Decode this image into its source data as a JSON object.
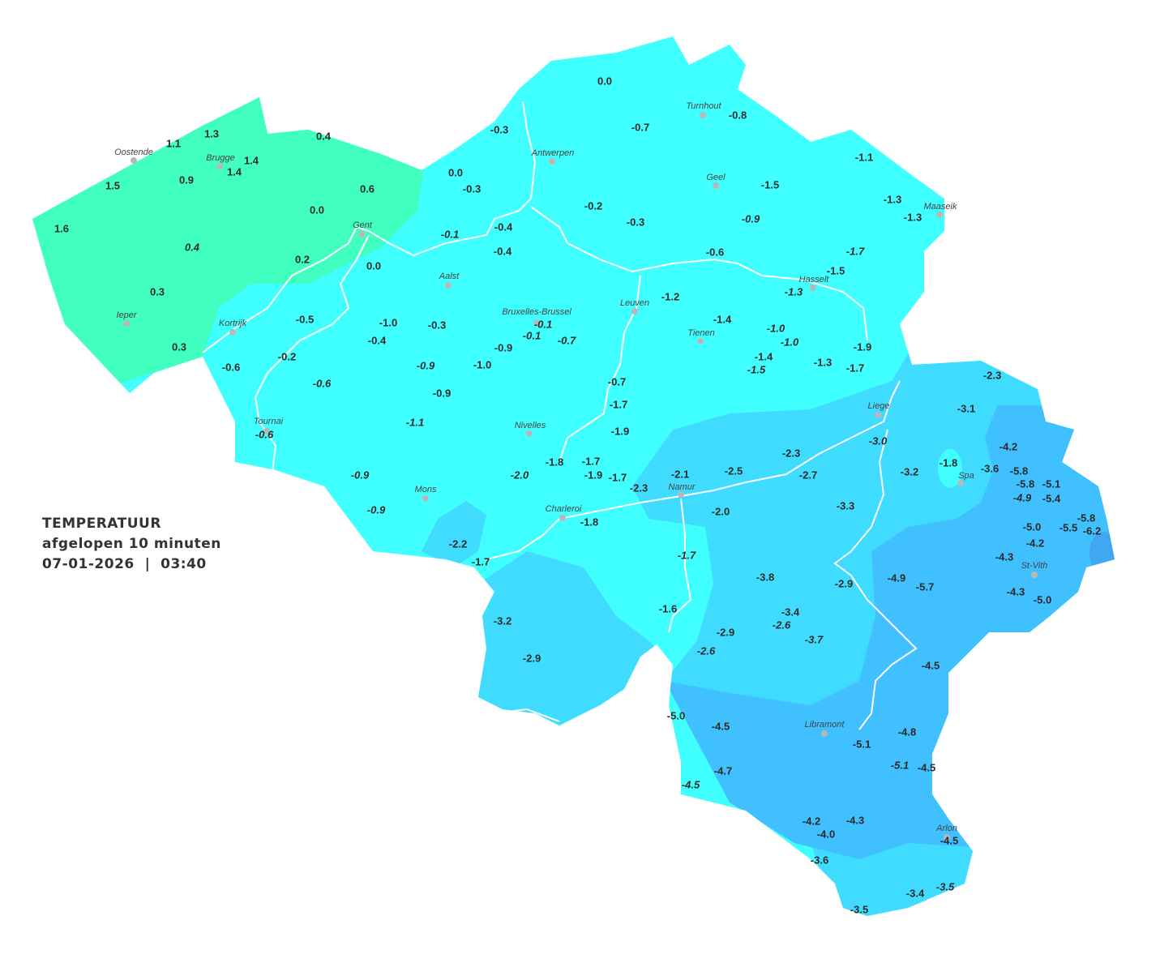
{
  "legend": {
    "title": "TEMPERATUUR",
    "subtitle": "afgelopen 10 minuten",
    "datetime": "07-01-2026  |  03:40"
  },
  "colors": {
    "above_0": "#40FFBF",
    "0_to_-2": "#40FFFF",
    "-2_to_-4": "#40DCFF",
    "-4_to_-6": "#40C0FF",
    "below_-6": "#40A8F0",
    "rivers": "#FFFFFF",
    "city_dot": "#B8B8B8"
  },
  "cities": [
    "Oostende",
    "Brugge",
    "Gent",
    "Ieper",
    "Kortrijk",
    "Antwerpen",
    "Turnhout",
    "Geel",
    "Maaseik",
    "Hasselt",
    "Leuven",
    "Tienen",
    "Aalst",
    "Bruxelles-Brussel",
    "Tournai",
    "Nivelles",
    "Mons",
    "Charleroi",
    "Namur",
    "Liege",
    "Spa",
    "St-Vith",
    "Libramont",
    "Arlon"
  ],
  "stations": [
    {
      "v": "1.3"
    },
    {
      "v": "1.1"
    },
    {
      "v": "1.4"
    },
    {
      "v": "1.4"
    },
    {
      "v": "0.9"
    },
    {
      "v": "1.5"
    },
    {
      "v": "0.4"
    },
    {
      "v": "0.6"
    },
    {
      "v": "0.0"
    },
    {
      "v": "1.6"
    },
    {
      "v": "0.4",
      "i": true
    },
    {
      "v": "0.2"
    },
    {
      "v": "0.0"
    },
    {
      "v": "0.3"
    },
    {
      "v": "0.3"
    },
    {
      "v": "0.0"
    },
    {
      "v": "-0.3"
    },
    {
      "v": "-0.7"
    },
    {
      "v": "-0.8"
    },
    {
      "v": "-1.1"
    },
    {
      "v": "0.0"
    },
    {
      "v": "-0.3"
    },
    {
      "v": "-1.5"
    },
    {
      "v": "-1.3"
    },
    {
      "v": "-1.3"
    },
    {
      "v": "-0.2"
    },
    {
      "v": "-0.3"
    },
    {
      "v": "-0.9",
      "i": true
    },
    {
      "v": "-0.4"
    },
    {
      "v": "-0.1",
      "i": true
    },
    {
      "v": "-0.4"
    },
    {
      "v": "-0.6"
    },
    {
      "v": "-1.7",
      "i": true
    },
    {
      "v": "-1.5"
    },
    {
      "v": "-1.3",
      "i": true
    },
    {
      "v": "-1.2"
    },
    {
      "v": "-0.5"
    },
    {
      "v": "-1.0"
    },
    {
      "v": "-0.3"
    },
    {
      "v": "-0.1",
      "i": true
    },
    {
      "v": "-0.1",
      "i": true
    },
    {
      "v": "-0.7",
      "i": true
    },
    {
      "v": "-1.4"
    },
    {
      "v": "-1.0",
      "i": true
    },
    {
      "v": "-1.0",
      "i": true
    },
    {
      "v": "-0.4"
    },
    {
      "v": "-0.9"
    },
    {
      "v": "-0.2"
    },
    {
      "v": "-0.6"
    },
    {
      "v": "-0.9",
      "i": true
    },
    {
      "v": "-1.0"
    },
    {
      "v": "-1.4"
    },
    {
      "v": "-1.5",
      "i": true
    },
    {
      "v": "-1.3"
    },
    {
      "v": "-1.9"
    },
    {
      "v": "-1.7"
    },
    {
      "v": "-0.6",
      "i": true
    },
    {
      "v": "-0.9"
    },
    {
      "v": "-0.7"
    },
    {
      "v": "-1.7"
    },
    {
      "v": "-1.1",
      "i": true
    },
    {
      "v": "-1.9"
    },
    {
      "v": "-0.6",
      "i": true
    },
    {
      "v": "-3.0",
      "i": true
    },
    {
      "v": "-2.3"
    },
    {
      "v": "-3.1"
    },
    {
      "v": "-4.2"
    },
    {
      "v": "-1.8"
    },
    {
      "v": "-1.7"
    },
    {
      "v": "-2.3"
    },
    {
      "v": "-0.9",
      "i": true
    },
    {
      "v": "-2.0",
      "i": true
    },
    {
      "v": "-1.9"
    },
    {
      "v": "-1.7"
    },
    {
      "v": "-2.1"
    },
    {
      "v": "-2.5"
    },
    {
      "v": "-2.7"
    },
    {
      "v": "-3.2"
    },
    {
      "v": "-1.8"
    },
    {
      "v": "-3.6"
    },
    {
      "v": "-5.8"
    },
    {
      "v": "-5.8"
    },
    {
      "v": "-5.1"
    },
    {
      "v": "-4.9",
      "i": true
    },
    {
      "v": "-5.4"
    },
    {
      "v": "-2.3"
    },
    {
      "v": "-0.9",
      "i": true
    },
    {
      "v": "-2.0"
    },
    {
      "v": "-3.3"
    },
    {
      "v": "-1.8"
    },
    {
      "v": "-5.8"
    },
    {
      "v": "-5.0"
    },
    {
      "v": "-5.5"
    },
    {
      "v": "-6.2"
    },
    {
      "v": "-4.2"
    },
    {
      "v": "-2.2"
    },
    {
      "v": "-1.7",
      "i": true
    },
    {
      "v": "-4.3"
    },
    {
      "v": "-1.7"
    },
    {
      "v": "-3.8"
    },
    {
      "v": "-2.9"
    },
    {
      "v": "-4.9"
    },
    {
      "v": "-5.7"
    },
    {
      "v": "-4.3"
    },
    {
      "v": "-5.0"
    },
    {
      "v": "-1.6"
    },
    {
      "v": "-3.4"
    },
    {
      "v": "-2.6",
      "i": true
    },
    {
      "v": "-3.2"
    },
    {
      "v": "-2.9"
    },
    {
      "v": "-3.7",
      "i": true
    },
    {
      "v": "-2.6",
      "i": true
    },
    {
      "v": "-2.9"
    },
    {
      "v": "-4.5"
    },
    {
      "v": "-5.0"
    },
    {
      "v": "-4.5"
    },
    {
      "v": "-4.8"
    },
    {
      "v": "-5.1"
    },
    {
      "v": "-5.1",
      "i": true
    },
    {
      "v": "-4.5"
    },
    {
      "v": "-4.7"
    },
    {
      "v": "-4.5",
      "i": true
    },
    {
      "v": "-4.2"
    },
    {
      "v": "-4.3"
    },
    {
      "v": "-4.0"
    },
    {
      "v": "-4.5"
    },
    {
      "v": "-3.6"
    },
    {
      "v": "-3.4"
    },
    {
      "v": "-3.5",
      "i": true
    },
    {
      "v": "-3.5"
    }
  ]
}
